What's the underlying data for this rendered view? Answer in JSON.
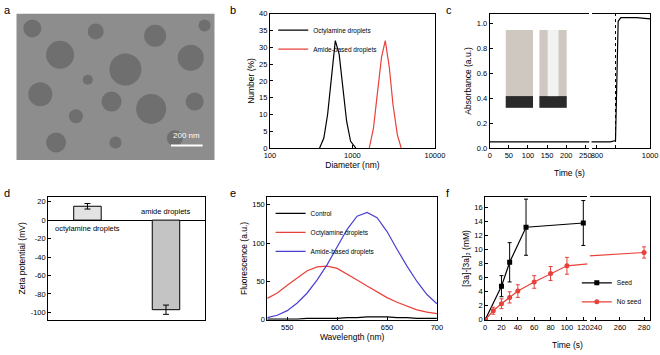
{
  "chart_data": [
    {
      "type": "image",
      "panel": "a",
      "scale_bar": "200 nm"
    },
    {
      "type": "line",
      "panel": "b",
      "xlabel": "Diameter (nm)",
      "ylabel": "Number (%)",
      "log": "x",
      "xlim": [
        100,
        10000
      ],
      "xticks": [
        100,
        1000,
        10000
      ],
      "ylim": [
        0,
        40
      ],
      "yticks": [
        0,
        5,
        10,
        15,
        20,
        25,
        30,
        35,
        40
      ],
      "legend": "top left",
      "series": [
        {
          "name": "Octylamine droplets",
          "color": "#000000",
          "x": [
            400,
            450,
            500,
            560,
            620,
            690,
            760,
            850,
            950,
            1100
          ],
          "values": [
            0,
            3,
            10,
            22,
            32,
            28,
            18,
            8,
            2,
            0
          ]
        },
        {
          "name": "Amide-based droplets",
          "color": "#e8403a",
          "x": [
            1600,
            1800,
            2000,
            2250,
            2500,
            2800,
            3100,
            3500,
            3900
          ],
          "values": [
            0,
            6,
            16,
            27,
            32,
            24,
            13,
            4,
            0
          ]
        }
      ]
    },
    {
      "type": "line",
      "panel": "c",
      "xlabel": "Time (s)",
      "ylabel": "Absorbance (a.u.)",
      "xlim": [
        0,
        1000
      ],
      "xbreak": [
        260,
        780
      ],
      "xticks": [
        0,
        50,
        100,
        150,
        200,
        250,
        800,
        1000
      ],
      "ylim": [
        0,
        1.08
      ],
      "yticks": [
        {
          "value": 0,
          "label": "0.0"
        },
        0.2,
        0.4,
        0.6,
        0.8,
        {
          "value": 1,
          "label": "1.0"
        }
      ],
      "vline": {
        "x": 870,
        "line_style": "dotted"
      },
      "series": [
        {
          "color": "#000000",
          "x": [
            0,
            100,
            200,
            260,
            780,
            800,
            850,
            870,
            880,
            890,
            950,
            1000
          ],
          "values": [
            0.05,
            0.05,
            0.05,
            0.05,
            0.05,
            0.05,
            0.05,
            0.06,
            1.02,
            1.05,
            1.05,
            1.04
          ]
        }
      ]
    },
    {
      "type": "bar",
      "panel": "d",
      "ylabel": "Zeta potential (mV)",
      "categories": [
        "octylamine droplets",
        "amide droplets"
      ],
      "values": [
        15,
        -97
      ],
      "errors": [
        3,
        5
      ],
      "colors": [
        "#e3e3e3",
        "#c4c4c4"
      ],
      "ylim": [
        -108,
        25
      ],
      "yticks": [
        -100,
        -80,
        -60,
        -40,
        -20,
        0,
        20
      ],
      "tick_labels": "y"
    },
    {
      "type": "line",
      "panel": "e",
      "xlabel": "Wavelength (nm)",
      "ylabel": "Fluorescence (a.u.)",
      "xlim": [
        530,
        700
      ],
      "xticks": [
        550,
        600,
        650,
        700
      ],
      "ylim": [
        0,
        160
      ],
      "yticks": [
        0,
        50,
        100,
        150
      ],
      "legend": "top left",
      "series": [
        {
          "name": "Control",
          "color": "#000000",
          "x": [
            530,
            540,
            550,
            560,
            570,
            580,
            590,
            600,
            610,
            620,
            630,
            640,
            650,
            660,
            670,
            680,
            690,
            700
          ],
          "values": [
            1,
            1,
            1,
            1,
            2,
            2,
            2,
            2,
            3,
            3,
            4,
            4,
            4,
            3,
            3,
            2,
            2,
            2
          ]
        },
        {
          "name": "Octylamine droplets",
          "color": "#e8403a",
          "x": [
            530,
            540,
            550,
            560,
            570,
            580,
            590,
            600,
            610,
            620,
            630,
            640,
            650,
            660,
            670,
            680,
            690,
            700
          ],
          "values": [
            28,
            35,
            45,
            55,
            64,
            69,
            70,
            67,
            60,
            52,
            44,
            36,
            29,
            23,
            18,
            13,
            10,
            8
          ]
        },
        {
          "name": "Amide-based droplets",
          "color": "#4a3fd0",
          "x": [
            530,
            540,
            550,
            560,
            570,
            580,
            590,
            600,
            610,
            620,
            630,
            640,
            650,
            660,
            670,
            680,
            690,
            700
          ],
          "values": [
            3,
            6,
            12,
            22,
            35,
            52,
            72,
            95,
            118,
            135,
            140,
            133,
            115,
            92,
            70,
            50,
            33,
            21
          ]
        }
      ]
    },
    {
      "type": "line",
      "panel": "f",
      "xlabel": "Time (s)",
      "ylabel": "[3a]-[3a]₂ (mM)",
      "xlim": [
        0,
        285
      ],
      "xbreak": [
        125,
        235
      ],
      "xticks": [
        0,
        20,
        40,
        60,
        80,
        100,
        120,
        240,
        260,
        280
      ],
      "ylim": [
        0,
        17.5
      ],
      "yticks": [
        0,
        2,
        4,
        6,
        8,
        10,
        12,
        14,
        16
      ],
      "legend": "bottom right",
      "series": [
        {
          "name": "Seed",
          "color": "#000000",
          "marker": "square",
          "x": [
            0,
            20,
            30,
            50,
            120
          ],
          "values": [
            0,
            4.8,
            8.2,
            13.2,
            13.8
          ],
          "errors": [
            0,
            1.5,
            2.8,
            4,
            3.2
          ]
        },
        {
          "name": "No seed",
          "color": "#e8403a",
          "marker": "circle",
          "x": [
            0,
            10,
            20,
            30,
            40,
            60,
            80,
            100,
            280
          ],
          "values": [
            0,
            1.3,
            2.3,
            3.2,
            4.1,
            5.4,
            6.6,
            7.7,
            9.6
          ],
          "errors": [
            0,
            0.5,
            0.7,
            0.8,
            0.9,
            0.9,
            1,
            1.2,
            0.8
          ]
        }
      ]
    }
  ]
}
